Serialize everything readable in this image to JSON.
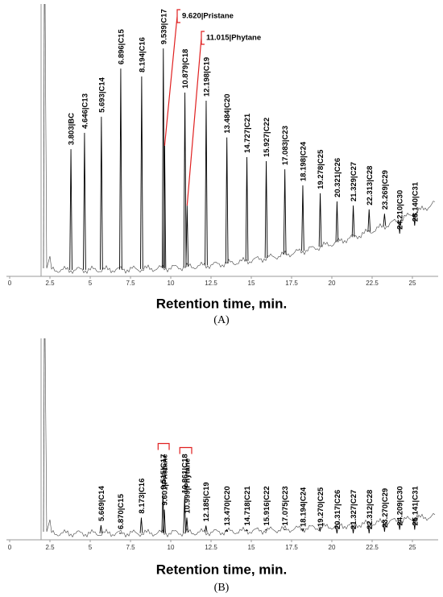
{
  "chart_data": [
    {
      "type": "chromatogram",
      "panel": "(A)",
      "xlabel": "Retention time, min.",
      "xlim": [
        0,
        26.6
      ],
      "ylim": [
        0,
        100
      ],
      "xticks": [
        0,
        2.5,
        5,
        7.5,
        10,
        12.5,
        15,
        17.5,
        20,
        22.5,
        25
      ],
      "x": [
        3.803,
        4.646,
        5.693,
        6.896,
        8.194,
        9.539,
        9.62,
        10.879,
        11.015,
        12.198,
        13.484,
        14.727,
        15.927,
        17.083,
        18.198,
        19.278,
        20.321,
        21.329,
        22.313,
        23.269,
        24.21,
        25.14
      ],
      "values": [
        46.7,
        52.7,
        58.6,
        76.3,
        73.4,
        83.7,
        48,
        67.5,
        26,
        64.5,
        51,
        43.8,
        42.3,
        39.3,
        33.4,
        30.5,
        27.5,
        26,
        24.6,
        23,
        15.7,
        18.6
      ],
      "labels": [
        "3.803|BC",
        "4.646|C13",
        "5.693|C14",
        "6.896|C15",
        "8.194|C16",
        "9.539|C17",
        "9.620|Pristane",
        "10.879|C18",
        "11.015|Phytane",
        "12.198|C19",
        "13.484|C20",
        "14.727|C21",
        "15.927|C22",
        "17.083|C23",
        "18.198|C24",
        "19.278|C25",
        "20.321|C26",
        "21.329|C27",
        "22.313|C28",
        "23.269|C29",
        "24.210|C30",
        "25.140|C31"
      ],
      "color": "#000000",
      "callout_color": "#e02020"
    },
    {
      "type": "chromatogram",
      "panel": "(B)",
      "xlabel": "Retention time, min.",
      "xlim": [
        0,
        26.6
      ],
      "ylim": [
        0,
        100
      ],
      "xticks": [
        0,
        2.5,
        5,
        7.5,
        10,
        12.5,
        15,
        17.5,
        20,
        22.5,
        25
      ],
      "x": [
        5.669,
        6.87,
        8.173,
        9.515,
        9.601,
        10.861,
        10.999,
        12.185,
        13.47,
        14.718,
        15.916,
        17.075,
        18.194,
        19.27,
        20.317,
        21.327,
        22.312,
        23.27,
        24.209,
        25.141
      ],
      "values": [
        7.2,
        3.2,
        11,
        23,
        15,
        21,
        11,
        7,
        5,
        5,
        5,
        5,
        4.4,
        4.4,
        3.2,
        3.2,
        3.2,
        4,
        5,
        5
      ],
      "labels": [
        "5.669|C14",
        "6.870|C15",
        "8.173|C16",
        "9.515|C17",
        "9.601|Pristane",
        "10.861|C18",
        "10.999|Phytane",
        "12.185|C19",
        "13.470|C20",
        "14.718|C21",
        "15.916|C22",
        "17.075|C23",
        "18.194|C24",
        "19.270|C25",
        "20.317|C26",
        "21.327|C27",
        "22.312|C28",
        "23.270|C29",
        "24.209|C30",
        "25.141|C31"
      ],
      "color": "#000000",
      "callout_color": "#e02020"
    }
  ]
}
